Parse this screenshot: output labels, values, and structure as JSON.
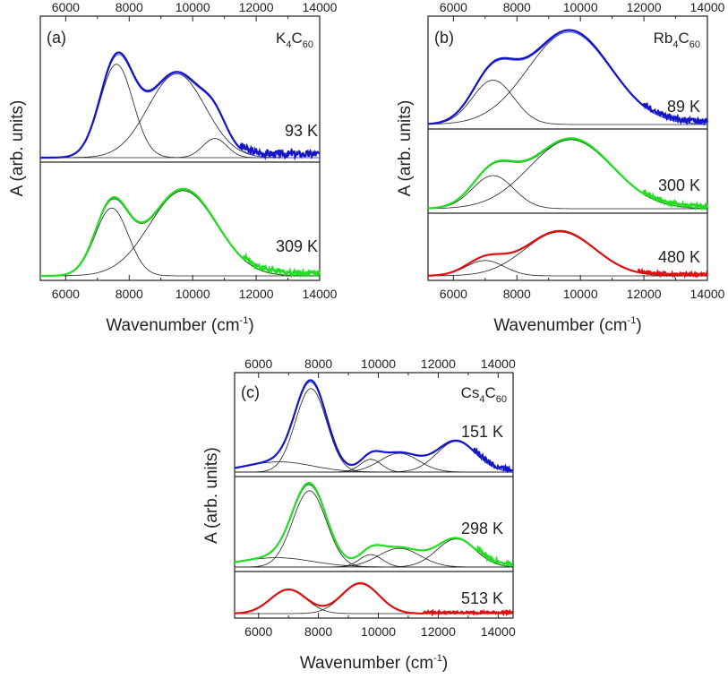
{
  "chart_data": [
    {
      "type": "line",
      "panel_label": "(a)",
      "compound": {
        "base1": "K",
        "sub1": "4",
        "base2": "C",
        "sub2": "60"
      },
      "xlabel": {
        "text": "Wavenumber (cm",
        "sup": "-1",
        "close": ")"
      },
      "ylabel": "A (arb. units)",
      "xlim": [
        5200,
        14000
      ],
      "x_ticks": [
        6000,
        8000,
        10000,
        12000,
        14000
      ],
      "x_tick_labels": [
        "6000",
        "8000",
        "10000",
        "12000",
        "14000"
      ],
      "grid": false,
      "series": [
        {
          "temperature": "93 K",
          "color": "#1414c8",
          "fit_color": "#5050e0",
          "components": [
            {
              "center": 7600,
              "width": 520,
              "amp": 0.78
            },
            {
              "center": 9500,
              "width": 900,
              "amp": 0.7
            },
            {
              "center": 10700,
              "width": 380,
              "amp": 0.16
            }
          ],
          "noise_from": 11500
        },
        {
          "temperature": "309 K",
          "color": "#22dd22",
          "fit_color": "#006600",
          "components": [
            {
              "center": 7450,
              "width": 520,
              "amp": 0.7
            },
            {
              "center": 9700,
              "width": 1050,
              "amp": 0.88
            }
          ],
          "noise_from": 11600
        }
      ]
    },
    {
      "type": "line",
      "panel_label": "(b)",
      "compound": {
        "base1": "Rb",
        "sub1": "4",
        "base2": "C",
        "sub2": "60"
      },
      "xlabel": {
        "text": "Wavenumber (cm",
        "sup": "-1",
        "close": ")"
      },
      "ylabel": "A (arb. units)",
      "xlim": [
        5200,
        14000
      ],
      "x_ticks": [
        6000,
        8000,
        10000,
        12000,
        14000
      ],
      "x_tick_labels": [
        "6000",
        "8000",
        "10000",
        "12000",
        "14000"
      ],
      "grid": false,
      "series": [
        {
          "temperature": "89 K",
          "color": "#1414c8",
          "fit_color": "#5050e0",
          "components": [
            {
              "center": 7250,
              "width": 650,
              "amp": 0.48
            },
            {
              "center": 9650,
              "width": 1300,
              "amp": 1.0
            }
          ],
          "noise_from": 12000
        },
        {
          "temperature": "300 K",
          "color": "#22dd22",
          "fit_color": "#006600",
          "components": [
            {
              "center": 7250,
              "width": 650,
              "amp": 0.48
            },
            {
              "center": 9700,
              "width": 1300,
              "amp": 1.0
            }
          ],
          "noise_from": 12000
        },
        {
          "temperature": "480 K",
          "color": "#dd1111",
          "fit_color": "#660000",
          "components": [
            {
              "center": 7000,
              "width": 600,
              "amp": 0.28
            },
            {
              "center": 9350,
              "width": 1100,
              "amp": 0.8
            }
          ],
          "noise_from": 11800
        }
      ]
    },
    {
      "type": "line",
      "panel_label": "(c)",
      "compound": {
        "base1": "Cs",
        "sub1": "4",
        "base2": "C",
        "sub2": "60"
      },
      "xlabel": {
        "text": "Wavenumber (cm",
        "sup": "-1",
        "close": ")"
      },
      "ylabel": "A (arb. units)",
      "xlim": [
        5200,
        14500
      ],
      "x_ticks": [
        6000,
        8000,
        10000,
        12000,
        14000
      ],
      "x_tick_labels": [
        "6000",
        "8000",
        "10000",
        "12000",
        "14000"
      ],
      "grid": false,
      "series": [
        {
          "temperature": "151 K",
          "color": "#1414c8",
          "fit_color": "#5050e0",
          "components": [
            {
              "center": 7750,
              "width": 520,
              "amp": 0.98
            },
            {
              "center": 9750,
              "width": 350,
              "amp": 0.15
            },
            {
              "center": 10700,
              "width": 650,
              "amp": 0.22
            },
            {
              "center": 12600,
              "width": 650,
              "amp": 0.36
            },
            {
              "center": 6700,
              "width": 1100,
              "amp": 0.12
            }
          ],
          "noise_from": 13200
        },
        {
          "temperature": "298 K",
          "color": "#22dd22",
          "fit_color": "#006600",
          "components": [
            {
              "center": 7700,
              "width": 560,
              "amp": 0.98
            },
            {
              "center": 9750,
              "width": 380,
              "amp": 0.16
            },
            {
              "center": 10700,
              "width": 700,
              "amp": 0.24
            },
            {
              "center": 12600,
              "width": 650,
              "amp": 0.36
            },
            {
              "center": 6600,
              "width": 1200,
              "amp": 0.12
            }
          ],
          "noise_from": 13300
        },
        {
          "temperature": "513 K",
          "color": "#dd1111",
          "fit_color": "#660000",
          "components": [
            {
              "center": 7000,
              "width": 600,
              "amp": 0.62
            },
            {
              "center": 9400,
              "width": 620,
              "amp": 0.78
            }
          ],
          "noise_from": 11500
        }
      ]
    }
  ]
}
